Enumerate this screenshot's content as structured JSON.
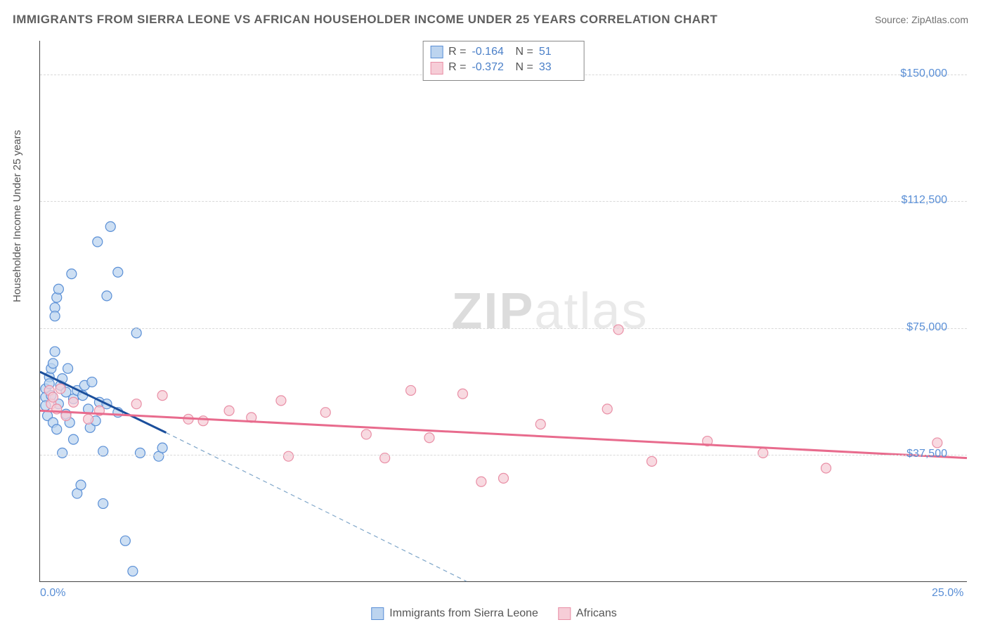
{
  "title": "IMMIGRANTS FROM SIERRA LEONE VS AFRICAN HOUSEHOLDER INCOME UNDER 25 YEARS CORRELATION CHART",
  "source_label": "Source:",
  "source_value": "ZipAtlas.com",
  "watermark_bold": "ZIP",
  "watermark_rest": "atlas",
  "y_axis_label": "Householder Income Under 25 years",
  "chart": {
    "type": "scatter",
    "background_color": "#ffffff",
    "grid_color": "#d9d9d9",
    "x_min": 0.0,
    "x_max": 25.0,
    "x_ticks": [
      {
        "value": 0.0,
        "label": "0.0%"
      },
      {
        "value": 25.0,
        "label": "25.0%"
      }
    ],
    "y_min": 0,
    "y_max": 160000,
    "y_ticks": [
      {
        "value": 37500,
        "label": "$37,500"
      },
      {
        "value": 75000,
        "label": "$75,000"
      },
      {
        "value": 112500,
        "label": "$112,500"
      },
      {
        "value": 150000,
        "label": "$150,000"
      }
    ],
    "marker_radius": 7,
    "marker_stroke_width": 1.2,
    "trend_line_width": 3,
    "trend_dash_width": 1.2,
    "series": [
      {
        "key": "sierra_leone",
        "label": "Immigrants from Sierra Leone",
        "fill_color": "#bcd4ef",
        "stroke_color": "#5a8fd6",
        "line_color": "#1b4f9c",
        "dash_color": "#7fa6c9",
        "R": "-0.164",
        "N": "51",
        "trend_solid": {
          "x1": 0.0,
          "y1": 62000,
          "x2": 3.4,
          "y2": 44000
        },
        "trend_dash": {
          "x1": 3.4,
          "y1": 44000,
          "x2": 11.5,
          "y2": 0
        },
        "points": [
          {
            "x": 0.15,
            "y": 57000
          },
          {
            "x": 0.15,
            "y": 54500
          },
          {
            "x": 0.15,
            "y": 52000
          },
          {
            "x": 0.2,
            "y": 49000
          },
          {
            "x": 0.25,
            "y": 60500
          },
          {
            "x": 0.25,
            "y": 58500
          },
          {
            "x": 0.3,
            "y": 63000
          },
          {
            "x": 0.3,
            "y": 55000
          },
          {
            "x": 0.35,
            "y": 64500
          },
          {
            "x": 0.35,
            "y": 47000
          },
          {
            "x": 0.4,
            "y": 68000
          },
          {
            "x": 0.4,
            "y": 81000
          },
          {
            "x": 0.4,
            "y": 78500
          },
          {
            "x": 0.45,
            "y": 84000
          },
          {
            "x": 0.45,
            "y": 45000
          },
          {
            "x": 0.5,
            "y": 86500
          },
          {
            "x": 0.5,
            "y": 52500
          },
          {
            "x": 0.55,
            "y": 58000
          },
          {
            "x": 0.6,
            "y": 38000
          },
          {
            "x": 0.6,
            "y": 60000
          },
          {
            "x": 0.7,
            "y": 56000
          },
          {
            "x": 0.7,
            "y": 49500
          },
          {
            "x": 0.75,
            "y": 63000
          },
          {
            "x": 0.8,
            "y": 47000
          },
          {
            "x": 0.85,
            "y": 91000
          },
          {
            "x": 0.9,
            "y": 54000
          },
          {
            "x": 0.9,
            "y": 42000
          },
          {
            "x": 1.0,
            "y": 56500
          },
          {
            "x": 1.0,
            "y": 26000
          },
          {
            "x": 1.1,
            "y": 28500
          },
          {
            "x": 1.15,
            "y": 55000
          },
          {
            "x": 1.2,
            "y": 58000
          },
          {
            "x": 1.3,
            "y": 51000
          },
          {
            "x": 1.35,
            "y": 45500
          },
          {
            "x": 1.4,
            "y": 59000
          },
          {
            "x": 1.5,
            "y": 47500
          },
          {
            "x": 1.55,
            "y": 100500
          },
          {
            "x": 1.6,
            "y": 53000
          },
          {
            "x": 1.7,
            "y": 23000
          },
          {
            "x": 1.7,
            "y": 38500
          },
          {
            "x": 1.8,
            "y": 84500
          },
          {
            "x": 1.8,
            "y": 52500
          },
          {
            "x": 1.9,
            "y": 105000
          },
          {
            "x": 2.1,
            "y": 91500
          },
          {
            "x": 2.1,
            "y": 50000
          },
          {
            "x": 2.3,
            "y": 12000
          },
          {
            "x": 2.5,
            "y": 3000
          },
          {
            "x": 2.6,
            "y": 73500
          },
          {
            "x": 2.7,
            "y": 38000
          },
          {
            "x": 3.2,
            "y": 37000
          },
          {
            "x": 3.3,
            "y": 39500
          }
        ]
      },
      {
        "key": "africans",
        "label": "Africans",
        "fill_color": "#f6cdd7",
        "stroke_color": "#e98fa6",
        "line_color": "#e86b8d",
        "R": "-0.372",
        "N": "33",
        "trend_solid": {
          "x1": 0.0,
          "y1": 50500,
          "x2": 25.0,
          "y2": 36500
        },
        "points": [
          {
            "x": 0.25,
            "y": 56500
          },
          {
            "x": 0.3,
            "y": 52500
          },
          {
            "x": 0.35,
            "y": 54500
          },
          {
            "x": 0.45,
            "y": 51000
          },
          {
            "x": 0.55,
            "y": 57000
          },
          {
            "x": 0.7,
            "y": 49000
          },
          {
            "x": 0.9,
            "y": 53000
          },
          {
            "x": 1.3,
            "y": 48000
          },
          {
            "x": 1.6,
            "y": 50500
          },
          {
            "x": 2.6,
            "y": 52500
          },
          {
            "x": 3.3,
            "y": 55000
          },
          {
            "x": 4.0,
            "y": 48000
          },
          {
            "x": 4.4,
            "y": 47500
          },
          {
            "x": 5.1,
            "y": 50500
          },
          {
            "x": 5.7,
            "y": 48500
          },
          {
            "x": 6.5,
            "y": 53500
          },
          {
            "x": 6.7,
            "y": 37000
          },
          {
            "x": 7.7,
            "y": 50000
          },
          {
            "x": 8.8,
            "y": 43500
          },
          {
            "x": 9.3,
            "y": 36500
          },
          {
            "x": 10.0,
            "y": 56500
          },
          {
            "x": 10.5,
            "y": 42500
          },
          {
            "x": 11.4,
            "y": 55500
          },
          {
            "x": 11.9,
            "y": 29500
          },
          {
            "x": 12.5,
            "y": 30500
          },
          {
            "x": 13.5,
            "y": 46500
          },
          {
            "x": 15.3,
            "y": 51000
          },
          {
            "x": 15.6,
            "y": 74500
          },
          {
            "x": 16.5,
            "y": 35500
          },
          {
            "x": 18.0,
            "y": 41500
          },
          {
            "x": 19.5,
            "y": 38000
          },
          {
            "x": 21.2,
            "y": 33500
          },
          {
            "x": 24.2,
            "y": 41000
          }
        ]
      }
    ]
  },
  "stats_box": {
    "R_label": "R =",
    "N_label": "N ="
  }
}
